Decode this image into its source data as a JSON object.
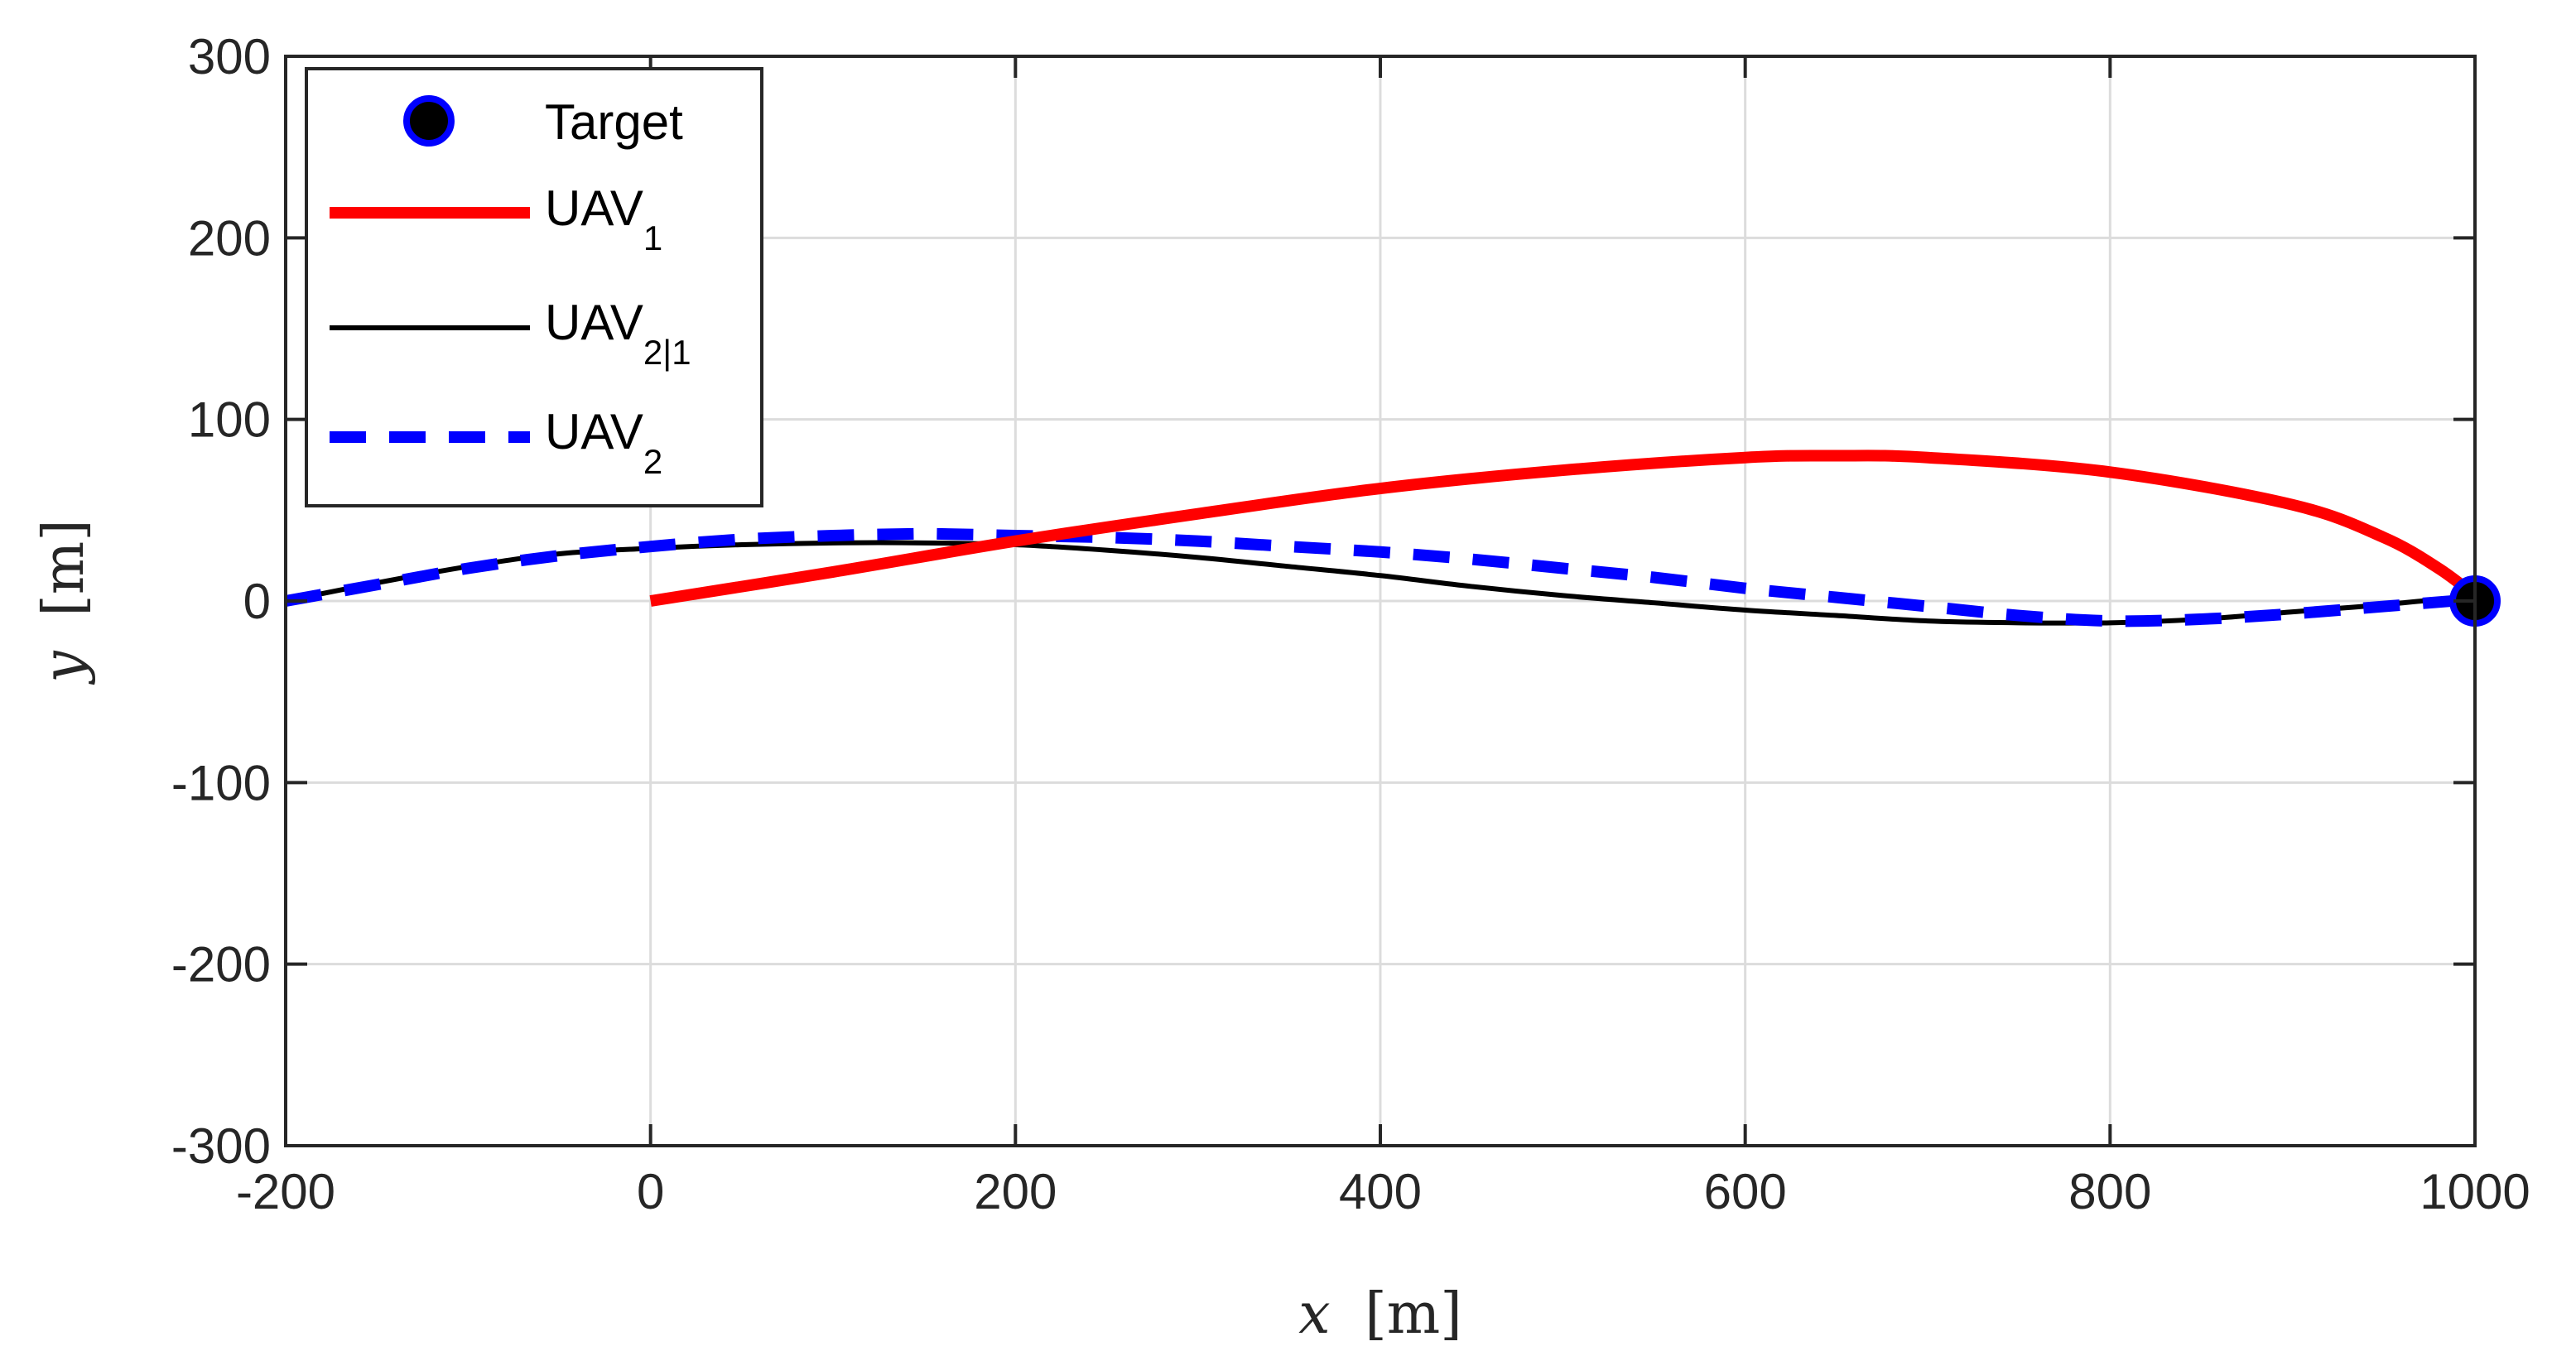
{
  "chart_data": {
    "type": "line",
    "xlabel": {
      "var": "x",
      "unit": "[m]"
    },
    "ylabel": {
      "var": "y",
      "unit": "[m]"
    },
    "xlim": [
      -200,
      1000
    ],
    "ylim": [
      -300,
      300
    ],
    "x_ticks": [
      -200,
      0,
      200,
      400,
      600,
      800,
      1000
    ],
    "y_ticks": [
      -300,
      -200,
      -100,
      0,
      100,
      200,
      300
    ],
    "grid": true,
    "legend_position": "top-left",
    "colors": {
      "uav1": "#ff0000",
      "uav21": "#000000",
      "uav2": "#0000ff",
      "target_fill": "#000000",
      "target_edge": "#0000ff",
      "grid": "#dcdcdc",
      "axis": "#262626"
    },
    "series": [
      {
        "key": "uav1",
        "name": "UAV",
        "subscript": "1",
        "style": "solid-thick",
        "points": [
          [
            0,
            0
          ],
          [
            100,
            16
          ],
          [
            200,
            33
          ],
          [
            300,
            48
          ],
          [
            400,
            62
          ],
          [
            500,
            72
          ],
          [
            600,
            79
          ],
          [
            650,
            80
          ],
          [
            700,
            79
          ],
          [
            800,
            71
          ],
          [
            900,
            53
          ],
          [
            950,
            35
          ],
          [
            980,
            18
          ],
          [
            1000,
            3
          ]
        ]
      },
      {
        "key": "uav21",
        "name": "UAV",
        "subscript": "2|1",
        "style": "solid-thin",
        "points": [
          [
            -200,
            0
          ],
          [
            -150,
            10
          ],
          [
            -100,
            19
          ],
          [
            -50,
            26
          ],
          [
            0,
            29
          ],
          [
            50,
            31
          ],
          [
            100,
            32
          ],
          [
            150,
            32
          ],
          [
            200,
            31
          ],
          [
            250,
            28
          ],
          [
            300,
            24
          ],
          [
            350,
            19
          ],
          [
            400,
            14
          ],
          [
            450,
            8
          ],
          [
            500,
            3
          ],
          [
            550,
            -1
          ],
          [
            600,
            -5
          ],
          [
            650,
            -8
          ],
          [
            700,
            -11
          ],
          [
            750,
            -12
          ],
          [
            800,
            -12
          ],
          [
            850,
            -10
          ],
          [
            900,
            -6
          ],
          [
            950,
            -2
          ],
          [
            1000,
            3
          ]
        ]
      },
      {
        "key": "uav2",
        "name": "UAV",
        "subscript": "2",
        "style": "dashed-thick",
        "points": [
          [
            -200,
            0
          ],
          [
            -150,
            9
          ],
          [
            -100,
            18
          ],
          [
            -50,
            25
          ],
          [
            0,
            30
          ],
          [
            50,
            34
          ],
          [
            100,
            36
          ],
          [
            150,
            37
          ],
          [
            200,
            36
          ],
          [
            250,
            35
          ],
          [
            300,
            33
          ],
          [
            350,
            30
          ],
          [
            400,
            27
          ],
          [
            450,
            23
          ],
          [
            500,
            18
          ],
          [
            550,
            13
          ],
          [
            600,
            7
          ],
          [
            650,
            2
          ],
          [
            700,
            -3
          ],
          [
            750,
            -8
          ],
          [
            800,
            -11
          ],
          [
            850,
            -10
          ],
          [
            900,
            -7
          ],
          [
            950,
            -3
          ],
          [
            1000,
            1
          ]
        ]
      }
    ],
    "target": {
      "name": "Target",
      "x": 1000,
      "y": 0
    }
  }
}
